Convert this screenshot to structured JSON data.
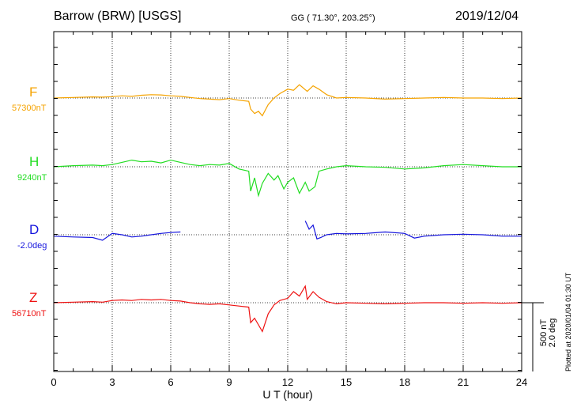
{
  "header": {
    "station": "Barrow (BRW)  [USGS]",
    "coords": "GG ( 71.30°, 203.25°)",
    "date": "2019/12/04"
  },
  "footer": {
    "plotted": "Plotted at 2020/01/04 01:30 UT",
    "scale_top": "500 nT",
    "scale_bottom": "2.0 deg"
  },
  "chart_data": {
    "type": "line",
    "xlabel": "U T (hour)",
    "xlim": [
      0,
      24
    ],
    "xticks": [
      0,
      3,
      6,
      9,
      12,
      15,
      18,
      21,
      24
    ],
    "xtick_labels": [
      "0",
      "3",
      "6",
      "9",
      "12",
      "15",
      "18",
      "21",
      "24"
    ],
    "grid": true,
    "y_scale": "500 nT (2.0 deg) per scale bar",
    "series": [
      {
        "name": "F",
        "baseline_label": "57300nT",
        "color": "#f5a300",
        "unit": "nT",
        "x": [
          0,
          1,
          2,
          2.5,
          3,
          3.5,
          4,
          4.5,
          5,
          5.5,
          6,
          6.5,
          7,
          7.5,
          8,
          8.5,
          9,
          9.5,
          10,
          10.1,
          10.3,
          10.5,
          10.7,
          11,
          11.3,
          11.6,
          12,
          12.3,
          12.6,
          13,
          13.3,
          13.6,
          14,
          14.5,
          15,
          16,
          17,
          18,
          19,
          20,
          21,
          22,
          23,
          24
        ],
        "values": [
          0,
          5,
          10,
          8,
          12,
          20,
          15,
          25,
          30,
          28,
          20,
          15,
          5,
          -5,
          -10,
          -15,
          -5,
          -20,
          -30,
          -100,
          -140,
          -120,
          -160,
          -60,
          0,
          40,
          80,
          70,
          120,
          60,
          110,
          80,
          30,
          0,
          5,
          0,
          -10,
          -5,
          0,
          5,
          0,
          0,
          -5,
          0
        ]
      },
      {
        "name": "H",
        "baseline_label": "9240nT",
        "color": "#22dd22",
        "unit": "nT",
        "x": [
          0,
          1,
          2,
          2.5,
          3,
          3.5,
          4,
          4.5,
          5,
          5.5,
          6,
          6.5,
          7,
          7.5,
          8,
          8.5,
          9,
          9.5,
          10,
          10.1,
          10.3,
          10.5,
          10.7,
          11,
          11.3,
          11.5,
          11.8,
          12,
          12.3,
          12.6,
          12.9,
          13.1,
          13.4,
          13.6,
          14,
          14.5,
          15,
          16,
          17,
          18,
          19,
          20,
          21,
          22,
          23,
          24
        ],
        "values": [
          0,
          10,
          15,
          10,
          20,
          40,
          60,
          45,
          50,
          35,
          60,
          40,
          20,
          10,
          20,
          15,
          30,
          -20,
          -40,
          -220,
          -100,
          -260,
          -150,
          -60,
          -120,
          -80,
          -200,
          -140,
          -100,
          -240,
          -140,
          -220,
          -180,
          -40,
          -20,
          0,
          10,
          0,
          -5,
          -20,
          -10,
          10,
          20,
          10,
          0,
          0
        ]
      },
      {
        "name": "D",
        "baseline_label": "-2.0deg",
        "color": "#1515dd",
        "unit": "deg",
        "x": [
          0,
          1,
          2,
          2.5,
          3,
          3.5,
          4,
          4.5,
          5,
          5.5,
          6,
          6.5
        ],
        "values": [
          -0.05,
          -0.08,
          -0.1,
          -0.2,
          0.05,
          0.0,
          -0.08,
          -0.05,
          0.0,
          0.05,
          0.08,
          0.1
        ],
        "x2": [
          12.9,
          13.1,
          13.3,
          13.5,
          13.7,
          14,
          14.5,
          15,
          16,
          17,
          18,
          18.5,
          19,
          20,
          21,
          22,
          23,
          24
        ],
        "values2": [
          0.5,
          0.2,
          0.35,
          -0.15,
          -0.1,
          0.0,
          0.05,
          0.03,
          0.05,
          0.1,
          0.05,
          -0.12,
          -0.05,
          0.0,
          0.02,
          0.0,
          -0.05,
          -0.05
        ]
      },
      {
        "name": "Z",
        "baseline_label": "56710nT",
        "color": "#ee1111",
        "unit": "nT",
        "x": [
          0,
          1,
          2,
          2.5,
          3,
          3.5,
          4,
          4.5,
          5,
          5.5,
          6,
          6.5,
          7,
          7.5,
          8,
          8.5,
          9,
          9.5,
          10,
          10.1,
          10.3,
          10.5,
          10.7,
          11,
          11.3,
          11.6,
          12,
          12.3,
          12.6,
          12.9,
          13,
          13.3,
          13.6,
          14,
          14.5,
          15,
          16,
          17,
          18,
          19,
          20,
          21,
          22,
          23,
          24
        ],
        "values": [
          0,
          5,
          10,
          5,
          20,
          25,
          20,
          30,
          25,
          30,
          20,
          15,
          0,
          -10,
          -15,
          -10,
          -20,
          -30,
          -40,
          -180,
          -140,
          -200,
          -260,
          -100,
          -20,
          20,
          40,
          100,
          60,
          150,
          30,
          100,
          50,
          10,
          -10,
          0,
          -5,
          -10,
          -5,
          0,
          0,
          -5,
          0,
          -5,
          0
        ]
      }
    ]
  }
}
